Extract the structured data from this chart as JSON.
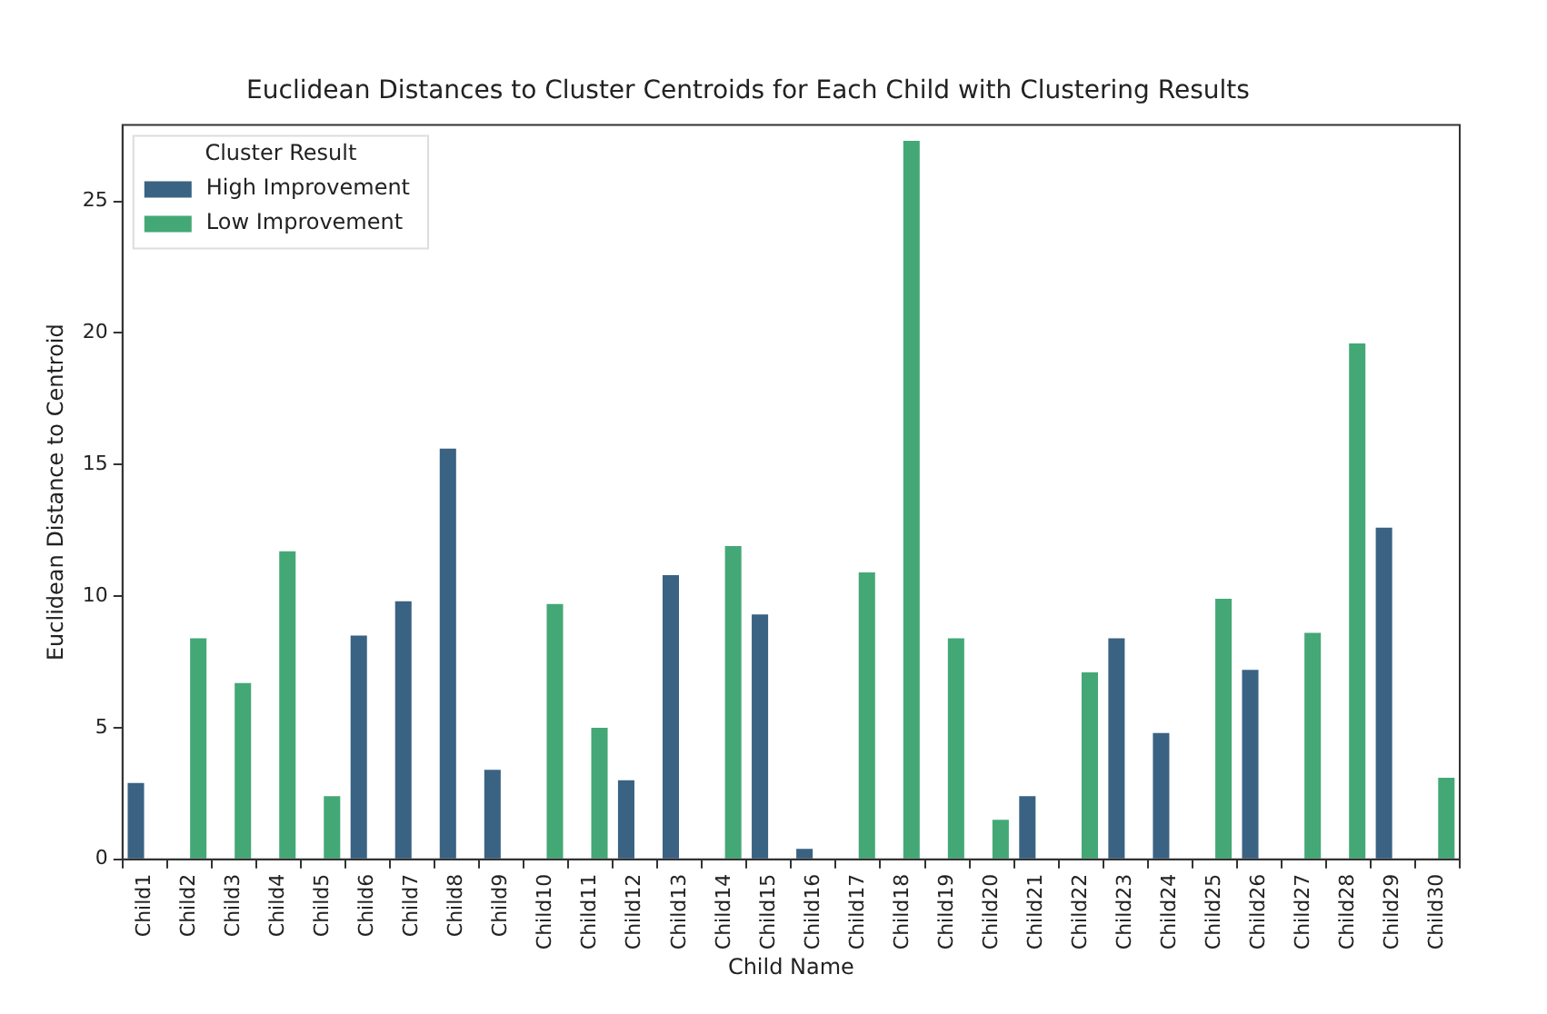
{
  "chart_data": {
    "type": "bar",
    "title": "Euclidean Distances to Cluster Centroids for Each Child with Clustering Results",
    "xlabel": "Child Name",
    "ylabel": "Euclidean Distance to Centroid",
    "legend_title": "Cluster Result",
    "legend": "top left",
    "grid": false,
    "categories": [
      "Child1",
      "Child2",
      "Child3",
      "Child4",
      "Child5",
      "Child6",
      "Child7",
      "Child8",
      "Child9",
      "Child10",
      "Child11",
      "Child12",
      "Child13",
      "Child14",
      "Child15",
      "Child16",
      "Child17",
      "Child18",
      "Child19",
      "Child20",
      "Child21",
      "Child22",
      "Child23",
      "Child24",
      "Child25",
      "Child26",
      "Child27",
      "Child28",
      "Child29",
      "Child30"
    ],
    "series": [
      {
        "name": "High Improvement",
        "color": "#3a6283",
        "values": [
          2.9,
          null,
          null,
          null,
          null,
          8.5,
          9.8,
          15.6,
          3.4,
          null,
          null,
          3.0,
          10.8,
          null,
          9.3,
          0.4,
          null,
          null,
          null,
          null,
          2.4,
          null,
          8.4,
          4.8,
          null,
          7.2,
          null,
          null,
          12.6,
          null
        ]
      },
      {
        "name": "Low Improvement",
        "color": "#44a876",
        "values": [
          null,
          8.4,
          6.7,
          11.7,
          2.4,
          null,
          null,
          null,
          null,
          9.7,
          5.0,
          null,
          null,
          11.9,
          null,
          null,
          10.9,
          27.3,
          8.4,
          1.5,
          null,
          7.1,
          null,
          null,
          9.9,
          null,
          8.6,
          19.6,
          null,
          3.1
        ]
      }
    ],
    "ylim": [
      0,
      27.9
    ],
    "yticks": [
      0,
      5,
      10,
      15,
      20,
      25
    ]
  }
}
